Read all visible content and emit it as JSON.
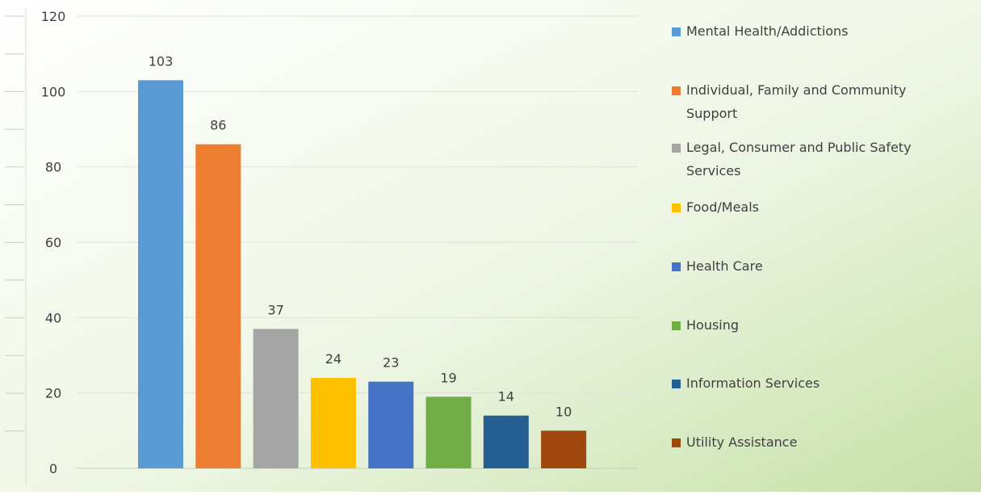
{
  "chart_data": {
    "type": "bar",
    "categories": [
      "Mental Health/Addictions",
      "Individual, Family and Community Support",
      "Legal, Consumer and Public Safety Services",
      "Food/Meals",
      "Health Care",
      "Housing",
      "Information Services",
      "Utility Assistance"
    ],
    "values": [
      103,
      86,
      37,
      24,
      23,
      19,
      14,
      10
    ],
    "colors": [
      "#5b9bd5",
      "#ed7d31",
      "#a5a5a5",
      "#ffc000",
      "#4472c4",
      "#70ad47",
      "#255e91",
      "#9e480e"
    ],
    "y_ticks": [
      "0",
      "20",
      "40",
      "60",
      "80",
      "100",
      "120"
    ],
    "ylim": [
      0,
      120
    ],
    "grid": true,
    "legend_position": "right",
    "legend_lines": [
      [
        "Mental Health/Addictions"
      ],
      [
        "Individual, Family and Community",
        "Support"
      ],
      [
        "Legal, Consumer and Public Safety",
        "Services"
      ],
      [
        "Food/Meals"
      ],
      [
        "Health Care"
      ],
      [
        "Housing"
      ],
      [
        "Information Services"
      ],
      [
        "Utility Assistance"
      ]
    ],
    "title": "",
    "xlabel": "",
    "ylabel": ""
  }
}
